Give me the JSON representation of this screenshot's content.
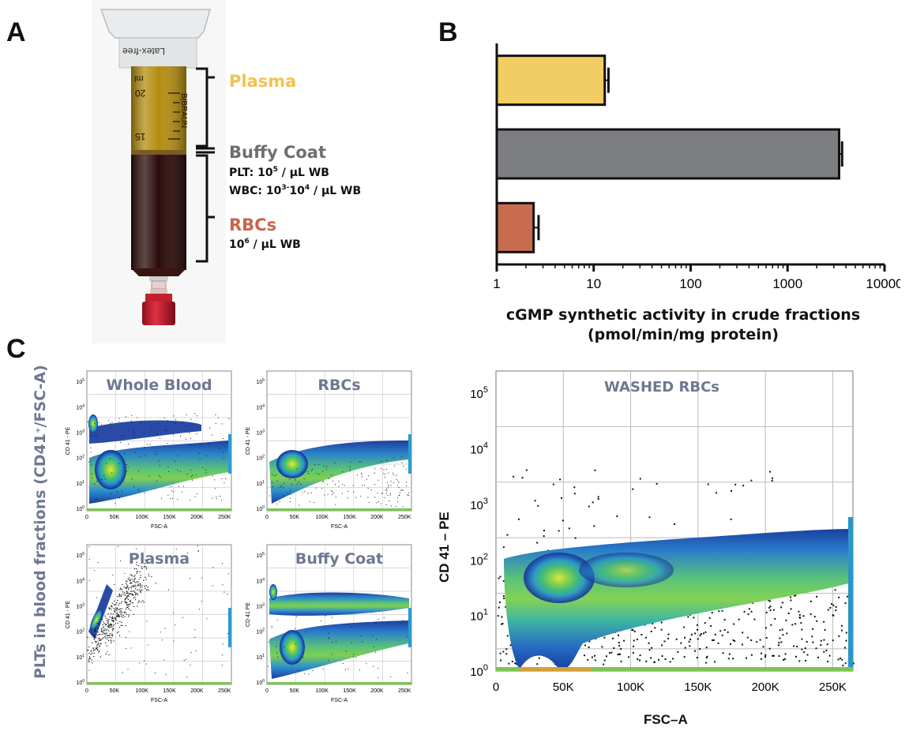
{
  "panels": {
    "a": "A",
    "b": "B",
    "c": "C"
  },
  "panel_a": {
    "syringe": {
      "brand_text": "Latex-free",
      "side_text": "B|BRAUN",
      "scale_unit": "ml",
      "scale_20": "20",
      "scale_15": "15"
    },
    "fractions": [
      {
        "name": "Plasma",
        "color": "#f2c24e"
      },
      {
        "name": "Buffy Coat",
        "color": "#6e6e6e",
        "details": [
          {
            "prefix": "PLT: 10",
            "exp": "5",
            "suffix": " / µL WB"
          },
          {
            "prefix": "WBC: 10",
            "exp": "3-",
            "mid": "10",
            "exp2": "4",
            "suffix": " / µL WB"
          }
        ]
      },
      {
        "name": "RBCs",
        "color": "#c8644a",
        "details": [
          {
            "prefix": "10",
            "exp": "6",
            "suffix": " / µL WB"
          }
        ]
      }
    ]
  },
  "chart_data": {
    "type": "bar",
    "orientation": "horizontal",
    "categories": [
      "Plasma",
      "Buffy Coat",
      "RBCs"
    ],
    "values": [
      13,
      3400,
      2.4
    ],
    "errors": [
      1.2,
      250,
      0.3
    ],
    "colors": [
      "#f2cd63",
      "#7c7e81",
      "#c86b4e"
    ],
    "xscale": "log",
    "xlim": [
      1,
      10000
    ],
    "xticks": [
      "1",
      "10",
      "100",
      "1000",
      "10000"
    ],
    "xlabel_line1": "cGMP synthetic activity in crude fractions",
    "xlabel_line2": "(pmol/min/mg protein)"
  },
  "panel_c": {
    "ylabel": "PLTs in blood fractions (CD41",
    "ylabel_sup": "+",
    "ylabel_end": "/FSC-A)",
    "plots": [
      {
        "title": "Whole Blood",
        "ylabel": "CD 41 - PE",
        "xlabel": "FSC-A"
      },
      {
        "title": "RBCs",
        "ylabel": "CD 41 - PE",
        "xlabel": "FSC-A"
      },
      {
        "title": "Plasma",
        "ylabel": "CD 41 - PE",
        "xlabel": "FSC-A"
      },
      {
        "title": "Buffy Coat",
        "ylabel": "CD 41 PE",
        "xlabel": "FSC-A"
      }
    ],
    "big_plot": {
      "title": "WASHED RBCs",
      "ylabel": "CD 41 – PE",
      "xlabel": "FSC–A"
    },
    "x_ticks": [
      "0",
      "50K",
      "100K",
      "150K",
      "200K",
      "250K"
    ],
    "y_exps": [
      "0",
      "1",
      "2",
      "3",
      "4",
      "5"
    ],
    "y_base": "10"
  }
}
